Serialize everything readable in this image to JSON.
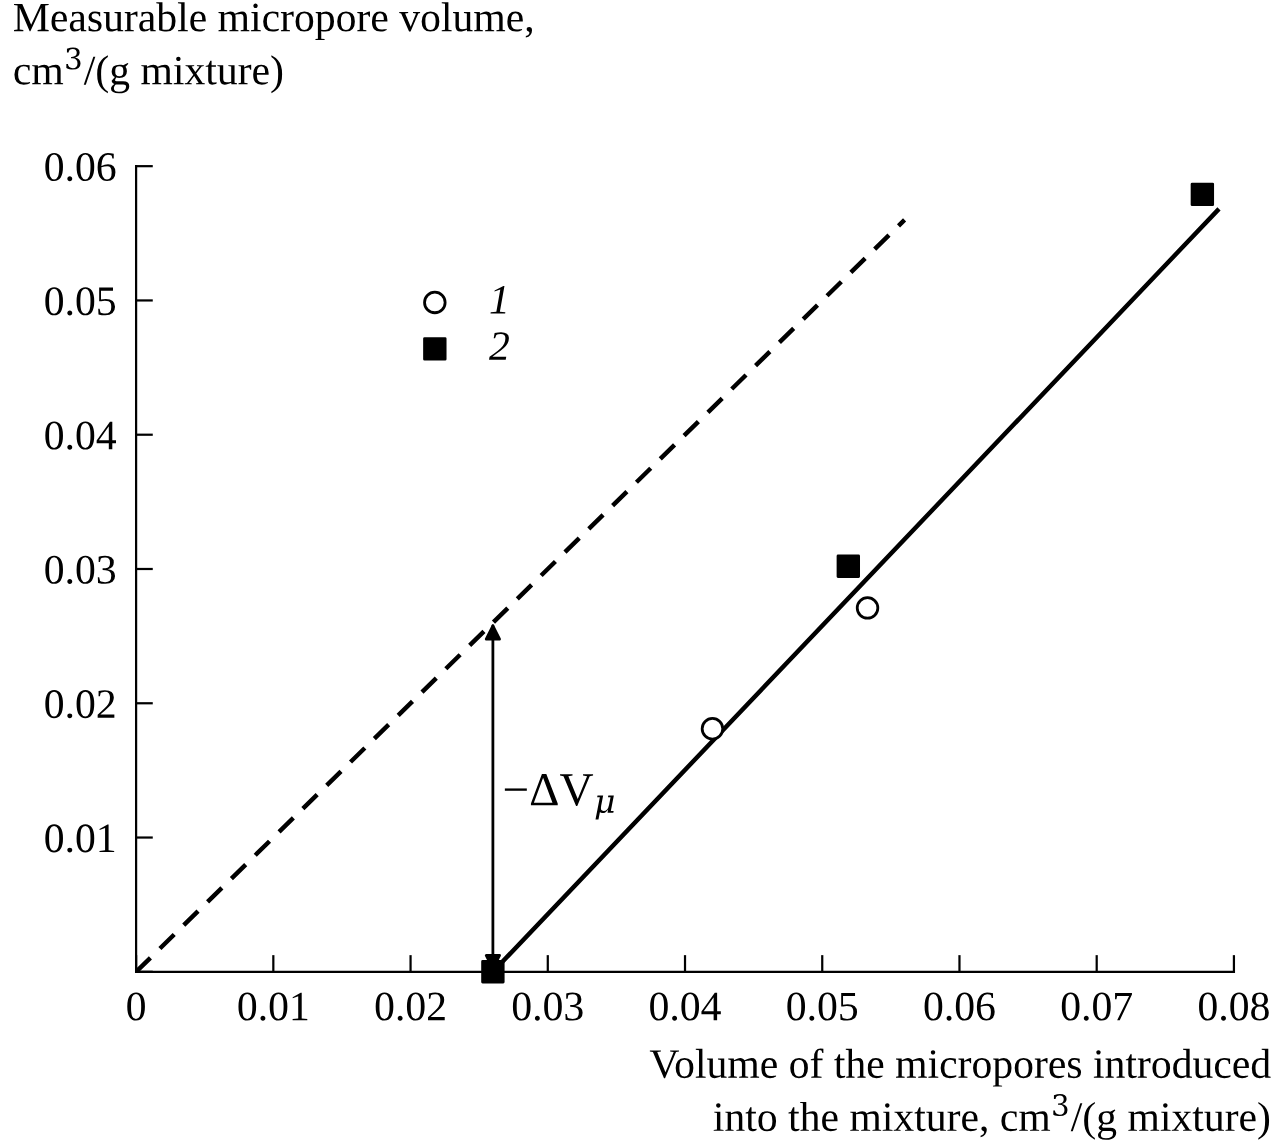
{
  "chart_data": {
    "type": "scatter",
    "xlabel": "Volume of the micropores introduced\ninto the mixture, cm$^{3}$/(g mixture)",
    "ylabel": "Measurable micropore volume,\ncm$^{3}$/(g mixture)",
    "xlim": [
      0,
      0.08
    ],
    "ylim": [
      0,
      0.06
    ],
    "xticks": [
      0,
      0.01,
      0.02,
      0.03,
      0.04,
      0.05,
      0.06,
      0.07,
      0.08
    ],
    "yticks": [
      {
        "value": 0,
        "label": null
      },
      0.01,
      0.02,
      0.03,
      0.04,
      0.05,
      0.06
    ],
    "grid": false,
    "legend": "top left",
    "series": [
      {
        "name": "1",
        "marker": "circle",
        "color": "#000000",
        "x": [
          0.042,
          0.0533
        ],
        "values": [
          0.0181,
          0.0271
        ]
      },
      {
        "name": "2",
        "marker": "square",
        "color": "#000000",
        "x": [
          0.026,
          0.0519,
          0.0777
        ],
        "values": [
          0,
          0.0302,
          0.0579
        ]
      },
      {
        "type": "line",
        "line_style": "solid",
        "color": "#000000",
        "x": [
          0.026,
          0.0788
        ],
        "values": [
          0,
          0.0567
        ]
      },
      {
        "type": "line",
        "line_style": "dashed",
        "color": "#000000",
        "x": [
          0,
          0.056
        ],
        "values": [
          0,
          0.056
        ]
      }
    ],
    "annotations": [
      "−ΔV$_{μ}$"
    ]
  }
}
